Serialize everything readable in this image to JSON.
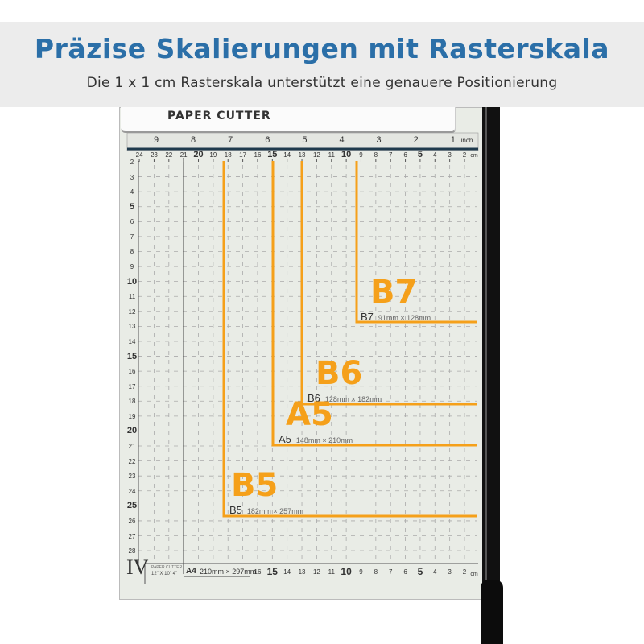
{
  "banner": {
    "title": "Präzise Skalierungen mit Rasterskala",
    "subtitle": "Die 1 x 1 cm Rasterskala unterstützt eine genauere Positionierung"
  },
  "cutter": {
    "brand": "PAPER CUTTER",
    "inch_ticks": [
      "9",
      "8",
      "7",
      "6",
      "5",
      "4",
      "3",
      "2",
      "1"
    ],
    "inch_unit": "inch",
    "cm_top_ticks": [
      "24",
      "23",
      "22",
      "21",
      "20",
      "19",
      "18",
      "17",
      "16",
      "15",
      "14",
      "13",
      "12",
      "11",
      "10",
      "9",
      "8",
      "7",
      "6",
      "5",
      "4",
      "3",
      "2"
    ],
    "cm_bottom_ticks": [
      "16",
      "15",
      "14",
      "13",
      "12",
      "11",
      "10",
      "9",
      "8",
      "7",
      "6",
      "5",
      "4",
      "3",
      "2"
    ],
    "cm_unit": "cm",
    "side_ticks": [
      "2",
      "3",
      "4",
      "5",
      "6",
      "7",
      "8",
      "9",
      "10",
      "11",
      "12",
      "13",
      "14",
      "15",
      "16",
      "17",
      "18",
      "19",
      "20",
      "21",
      "22",
      "23",
      "24",
      "25",
      "26",
      "27",
      "28"
    ],
    "model": "IV",
    "model_caption_1": "PAPER CUTTER",
    "model_caption_2": "12\" X 10\" 4\"",
    "a4_label": "A4",
    "a4_size": "210mm × 297mm",
    "formats": [
      {
        "big": "B7",
        "label": "B7",
        "size": "91mm × 128mm"
      },
      {
        "big": "B6",
        "label": "B6",
        "size": "128mm × 182mm"
      },
      {
        "big": "A5",
        "label": "A5",
        "size": "148mm × 210mm"
      },
      {
        "big": "B5",
        "label": "B5",
        "size": "182mm × 257mm"
      }
    ],
    "accent_color": "#f5a01a"
  }
}
